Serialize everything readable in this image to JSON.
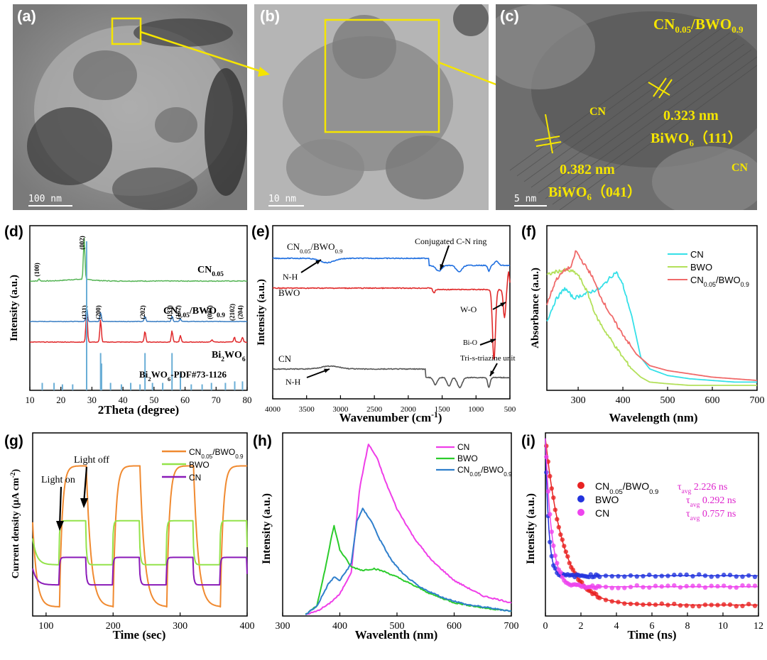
{
  "panels": {
    "a": {
      "label": "(a)",
      "scale": "100 nm"
    },
    "b": {
      "label": "(b)",
      "scale": "10 nm"
    },
    "c": {
      "label": "(c)",
      "scale": "5 nm",
      "title": "CN0.05/BWO0.9",
      "ann1_d": "0.323 nm",
      "ann1_p": "BiWO6（111）",
      "ann2_d": "0.382 nm",
      "ann2_p": "BiWO6（041）",
      "cn1": "CN",
      "cn2": "CN"
    },
    "d": {
      "label": "(d)"
    },
    "e": {
      "label": "(e)"
    },
    "f": {
      "label": "(f)"
    },
    "g": {
      "label": "(g)"
    },
    "h": {
      "label": "(h)"
    },
    "i": {
      "label": "(i)"
    }
  },
  "colors": {
    "CN_f": "#35e0e8",
    "BWO_f": "#b3e05a",
    "CNBWO_f": "#f06a6a",
    "CNBWO_g": "#f08a30",
    "BWO_g": "#93e34a",
    "CN_g": "#8a1ab8",
    "CN_h": "#ef3ee8",
    "BWO_h": "#2ccc2c",
    "CNBWO_h": "#2f7fcc",
    "xrd_cn": "#55b455",
    "xrd_mix": "#3b7fc4",
    "xrd_bwo": "#e0282a",
    "xrd_pdf": "#6aaed6",
    "ft_mix": "#1f6fe0",
    "ft_bwo": "#e02a2a",
    "ft_cn": "#555555",
    "tr_mix": "#e82222",
    "tr_bwo": "#2233dd",
    "tr_cn": "#ee44ee",
    "tau_text": "#dd22cc"
  },
  "chart_data": [
    {
      "panel": "d",
      "type": "line",
      "xlabel": "2Theta (degree)",
      "ylabel": "Intensity (a.u.)",
      "xlim": [
        10,
        80
      ],
      "xticks": [
        10,
        20,
        30,
        40,
        50,
        60,
        70,
        80
      ],
      "series": [
        {
          "name": "CN0.05",
          "peaks": [
            {
              "x": 13.0,
              "h": 0.05
            },
            {
              "x": 27.5,
              "h": 1.0
            }
          ],
          "peak_labels": [
            {
              "x": 13.0,
              "text": "(100)"
            },
            {
              "x": 27.5,
              "text": "(002)"
            }
          ]
        },
        {
          "name": "CN0.05/BWO0.9",
          "peaks": [
            {
              "x": 28.3,
              "h": 0.55
            },
            {
              "x": 32.8,
              "h": 0.35
            },
            {
              "x": 47.1,
              "h": 0.2
            },
            {
              "x": 55.8,
              "h": 0.2
            },
            {
              "x": 58.5,
              "h": 0.1
            }
          ]
        },
        {
          "name": "Bi2WO6",
          "peaks": [
            {
              "x": 28.3,
              "h": 1.0
            },
            {
              "x": 32.8,
              "h": 0.7
            },
            {
              "x": 47.1,
              "h": 0.35
            },
            {
              "x": 55.8,
              "h": 0.35
            },
            {
              "x": 58.5,
              "h": 0.2
            },
            {
              "x": 68.7,
              "h": 0.08
            },
            {
              "x": 75.9,
              "h": 0.15
            },
            {
              "x": 78.5,
              "h": 0.15
            }
          ],
          "peak_labels": [
            {
              "x": 28.3,
              "text": "(131)"
            },
            {
              "x": 32.8,
              "text": "(200)"
            },
            {
              "x": 47.1,
              "text": "(202)"
            },
            {
              "x": 55.8,
              "text": "(133)"
            },
            {
              "x": 58.5,
              "text": "(162)"
            },
            {
              "x": 68.7,
              "text": "(083)"
            },
            {
              "x": 75.9,
              "text": "(2102)"
            },
            {
              "x": 78.5,
              "text": "(204)"
            }
          ]
        },
        {
          "name": "Bi2WO6-PDF#73-1126",
          "sticks": [
            {
              "x": 28.3,
              "h": 1.0
            },
            {
              "x": 32.8,
              "h": 0.25
            },
            {
              "x": 33.1,
              "h": 0.18
            },
            {
              "x": 47.1,
              "h": 0.25
            },
            {
              "x": 55.8,
              "h": 0.25
            },
            {
              "x": 58.5,
              "h": 0.12
            },
            {
              "x": 14.0,
              "h": 0.05
            },
            {
              "x": 17.8,
              "h": 0.05
            },
            {
              "x": 20.5,
              "h": 0.04
            },
            {
              "x": 23.8,
              "h": 0.04
            },
            {
              "x": 36.0,
              "h": 0.05
            },
            {
              "x": 39.5,
              "h": 0.04
            },
            {
              "x": 42.5,
              "h": 0.05
            },
            {
              "x": 45.5,
              "h": 0.04
            },
            {
              "x": 49.5,
              "h": 0.05
            },
            {
              "x": 52.8,
              "h": 0.05
            },
            {
              "x": 62.0,
              "h": 0.04
            },
            {
              "x": 65.5,
              "h": 0.04
            },
            {
              "x": 68.5,
              "h": 0.05
            },
            {
              "x": 73.0,
              "h": 0.05
            },
            {
              "x": 76.0,
              "h": 0.06
            },
            {
              "x": 78.5,
              "h": 0.06
            }
          ]
        }
      ]
    },
    {
      "panel": "e",
      "type": "line",
      "xlabel": "Wavenumber (cm-1)",
      "ylabel": "Intensity (a.u.)",
      "xlim": [
        4000,
        500
      ],
      "xticks": [
        4000,
        3500,
        3000,
        2500,
        2000,
        1500,
        1000,
        500
      ],
      "series": [
        {
          "name": "CN0.05/BWO0.9"
        },
        {
          "name": "BWO"
        },
        {
          "name": "CN"
        }
      ],
      "annotations": [
        "Conjugated C-N ring",
        "N-H",
        "W-O",
        "Bi-O",
        "Tri-s-triazine unit",
        "N-H"
      ]
    },
    {
      "panel": "f",
      "type": "line",
      "xlabel": "Wavelength (nm)",
      "ylabel": "Absorbance (a.u.)",
      "xlim": [
        230,
        700
      ],
      "xticks": [
        300,
        400,
        500,
        600,
        700
      ],
      "series": [
        {
          "name": "CN",
          "x": [
            230,
            250,
            270,
            290,
            310,
            330,
            350,
            370,
            385,
            400,
            420,
            440,
            460,
            500,
            550,
            600,
            650,
            700
          ],
          "y": [
            0.42,
            0.55,
            0.62,
            0.56,
            0.58,
            0.6,
            0.62,
            0.68,
            0.72,
            0.64,
            0.45,
            0.2,
            0.13,
            0.09,
            0.07,
            0.06,
            0.05,
            0.05
          ]
        },
        {
          "name": "BWO",
          "x": [
            230,
            250,
            270,
            290,
            300,
            320,
            340,
            360,
            380,
            400,
            420,
            440,
            460,
            500,
            550,
            600,
            650,
            700
          ],
          "y": [
            0.7,
            0.72,
            0.73,
            0.72,
            0.7,
            0.6,
            0.45,
            0.36,
            0.28,
            0.2,
            0.13,
            0.08,
            0.05,
            0.04,
            0.03,
            0.03,
            0.03,
            0.03
          ]
        },
        {
          "name": "CN0.05/BWO0.9",
          "x": [
            230,
            250,
            270,
            285,
            295,
            305,
            315,
            330,
            350,
            370,
            390,
            410,
            430,
            460,
            500,
            550,
            600,
            650,
            700
          ],
          "y": [
            0.52,
            0.67,
            0.73,
            0.75,
            0.85,
            0.8,
            0.76,
            0.7,
            0.57,
            0.47,
            0.38,
            0.3,
            0.22,
            0.15,
            0.12,
            0.1,
            0.08,
            0.07,
            0.06
          ]
        }
      ]
    },
    {
      "panel": "g",
      "type": "line",
      "xlabel": "Time (sec)",
      "ylabel": "Current density (μA cm-2)",
      "xlim": [
        80,
        400
      ],
      "xticks": [
        100,
        200,
        300,
        400
      ],
      "light_on_times": [
        120,
        200,
        280,
        360
      ],
      "light_off_times": [
        160,
        240,
        320,
        400
      ],
      "annotations": [
        "Light on",
        "Light off"
      ],
      "series": [
        {
          "name": "CN0.05/BWO0.9",
          "on_level": 0.82,
          "off_level": 0.05
        },
        {
          "name": "BWO",
          "on_level": 0.52,
          "off_level": 0.28
        },
        {
          "name": "CN",
          "on_level": 0.32,
          "off_level": 0.17
        }
      ]
    },
    {
      "panel": "h",
      "type": "line",
      "xlabel": "Wavelenth (nm)",
      "ylabel": "Intensity (a.u.)",
      "xlim": [
        300,
        700
      ],
      "xticks": [
        300,
        400,
        500,
        600,
        700
      ],
      "series": [
        {
          "name": "CN",
          "x": [
            340,
            360,
            380,
            400,
            420,
            435,
            450,
            465,
            480,
            500,
            530,
            560,
            600,
            650,
            700
          ],
          "y": [
            0.0,
            0.02,
            0.06,
            0.12,
            0.25,
            0.75,
            1.0,
            0.92,
            0.78,
            0.62,
            0.45,
            0.32,
            0.2,
            0.11,
            0.07
          ]
        },
        {
          "name": "BWO",
          "x": [
            340,
            360,
            375,
            385,
            390,
            400,
            420,
            440,
            460,
            480,
            500,
            530,
            560,
            600,
            650,
            700
          ],
          "y": [
            0.0,
            0.05,
            0.28,
            0.45,
            0.52,
            0.38,
            0.28,
            0.26,
            0.27,
            0.25,
            0.22,
            0.17,
            0.12,
            0.07,
            0.04,
            0.02
          ]
        },
        {
          "name": "CN0.05/BWO0.9",
          "x": [
            340,
            360,
            380,
            390,
            400,
            420,
            430,
            440,
            455,
            470,
            490,
            510,
            540,
            580,
            620,
            660,
            700
          ],
          "y": [
            0.0,
            0.05,
            0.18,
            0.22,
            0.2,
            0.3,
            0.55,
            0.62,
            0.55,
            0.44,
            0.32,
            0.24,
            0.16,
            0.1,
            0.06,
            0.04,
            0.02
          ]
        }
      ]
    },
    {
      "panel": "i",
      "type": "scatter",
      "xlabel": "Time (ns)",
      "ylabel": "Intensity (a.u.)",
      "xlim": [
        0,
        12
      ],
      "xticks": [
        0,
        2,
        4,
        6,
        8,
        10,
        12
      ],
      "series": [
        {
          "name": "CN0.05/BWO0.9",
          "tau": "τavg 2.226 ns",
          "tau_val": 2.226,
          "baseline": 0.06
        },
        {
          "name": "BWO",
          "tau": "τavg 0.292 ns",
          "tau_val": 0.292,
          "baseline": 0.22
        },
        {
          "name": "CN",
          "tau": "τavg 0.757 ns",
          "tau_val": 0.757,
          "baseline": 0.16
        }
      ]
    }
  ]
}
